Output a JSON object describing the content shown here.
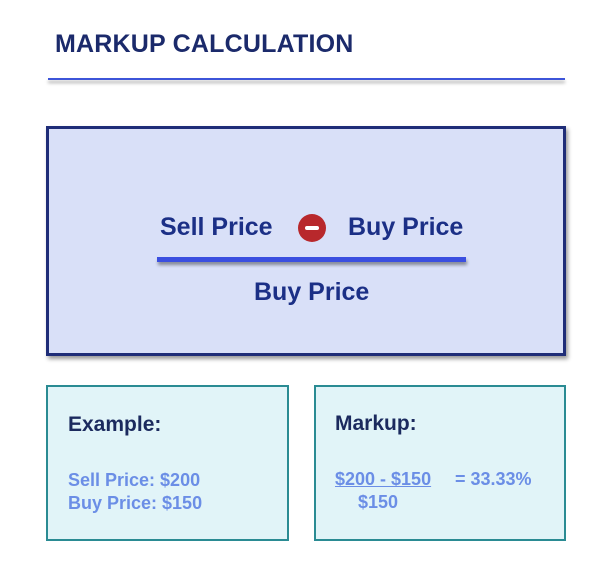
{
  "title": "MARKUP CALCULATION",
  "formula": {
    "numerator_left": "Sell Price",
    "operator_icon": "minus-circle-icon",
    "numerator_right": "Buy Price",
    "denominator": "Buy Price"
  },
  "example": {
    "heading": "Example:",
    "sell_price": "Sell Price: $200",
    "buy_price": "Buy Price: $150"
  },
  "markup": {
    "heading": "Markup:",
    "numerator": "$200 - $150",
    "result": "= 33.33%",
    "denominator": "$150"
  },
  "colors": {
    "accent": "#3b4fe0",
    "operator": "#b8282c",
    "box": "#d9e0f8",
    "card": "#e1f4f8"
  }
}
